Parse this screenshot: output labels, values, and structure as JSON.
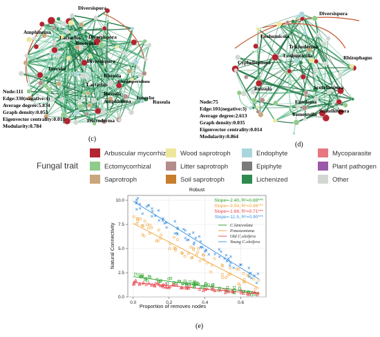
{
  "network_c": {
    "taxa": [
      "Diversispora",
      "Amphinema",
      "Lactarius",
      "Boerema",
      "Diversispora",
      "Inocybe",
      "Diversispora",
      "Russula",
      "Lactarius",
      "Rhodosporidium",
      "Russula",
      "Amphinema",
      "Inocybe",
      "Tricroderma"
    ],
    "stats": [
      "Node:111",
      "Edge:330(nagative:4)",
      "Average degree:5.874",
      "Graph density:0.053",
      "Eigenvector centrality:0.018",
      "Modularity:0.784"
    ],
    "panel_label": "(c)"
  },
  "network_d": {
    "taxa": [
      "Diversispora",
      "Leohumicola",
      "Trichoderma",
      "Leohumicola",
      "Rhizophagus",
      "Cyphellophora",
      "Russula",
      "Scutellospora",
      "Entoloma",
      "Scutellospora",
      "Tomentella"
    ],
    "stats": [
      "Node:75",
      "Edge:101(negative:3)",
      "Average degree:2.613",
      "Graph density:0.035",
      "Eigenvector centrality:0.014",
      "Modularity:0.864"
    ],
    "panel_label": "(d)"
  },
  "fungal_legend": {
    "title": "Fungal trait",
    "items": [
      {
        "label": "Arbuscular mycorrhizal",
        "color": "#b22530"
      },
      {
        "label": "Wood saprotroph",
        "color": "#ece79a"
      },
      {
        "label": "Endophyte",
        "color": "#a9d6dc"
      },
      {
        "label": "Mycoparasite",
        "color": "#e8787f"
      },
      {
        "label": "Ectomycorrhizal",
        "color": "#8fcb8a"
      },
      {
        "label": "Litter saprotroph",
        "color": "#b38d8a"
      },
      {
        "label": "Epiphyte",
        "color": "#7a7a7a"
      },
      {
        "label": "Plant pathogen",
        "color": "#9b59a9"
      },
      {
        "label": "Saprotroph",
        "color": "#c9a67c"
      },
      {
        "label": "Soil saprotroph",
        "color": "#c77e2d"
      },
      {
        "label": "Lichenized",
        "color": "#2e8b50"
      },
      {
        "label": "Other",
        "color": "#d2d7d2"
      }
    ]
  },
  "chart_data": {
    "type": "scatter",
    "title": "Robust",
    "xlabel": "Proportion of  removes nodes",
    "ylabel": "Natural Connectivity",
    "xlim": [
      -0.03,
      0.74
    ],
    "ylim": [
      0,
      10.5
    ],
    "xticks": [
      0.0,
      0.2,
      0.4,
      0.6
    ],
    "xtick_labels": [
      "0.0",
      "0.2",
      "0.4",
      "0.6"
    ],
    "yticks": [
      0.0,
      2.5,
      5.0,
      7.5,
      10.0
    ],
    "ytick_labels": [
      "0.0",
      "2.5",
      "5.0",
      "7.5",
      "10.0"
    ],
    "grid": true,
    "panel_label": "(e)",
    "slopes": [
      {
        "text": "Slope=-2.40, R²=0.69***",
        "color": "#2aa02a"
      },
      {
        "text": "Slope=-9.59, R²=0.86***",
        "color": "#f0a030"
      },
      {
        "text": "Slope=-1.68, R²=0.71***",
        "color": "#e8404a"
      },
      {
        "text": "Slope=-11.5, R²=0.90***",
        "color": "#3a90e0"
      }
    ],
    "series": [
      {
        "name": "C.lanceolata",
        "color": "#2aa02a",
        "marker": "square",
        "intercept": 2.1,
        "slope": -2.4,
        "noise": 0.35
      },
      {
        "name": "P.massoniana",
        "color": "#f0a030",
        "marker": "circle",
        "intercept": 7.6,
        "slope": -9.59,
        "noise": 0.9
      },
      {
        "name": "Old C.oleifera",
        "color": "#e8404a",
        "marker": "triangle",
        "intercept": 1.5,
        "slope": -1.68,
        "noise": 0.22
      },
      {
        "name": "Young C.oleifera",
        "color": "#3a90e0",
        "marker": "cross",
        "intercept": 9.9,
        "slope": -11.5,
        "noise": 0.7
      }
    ]
  }
}
